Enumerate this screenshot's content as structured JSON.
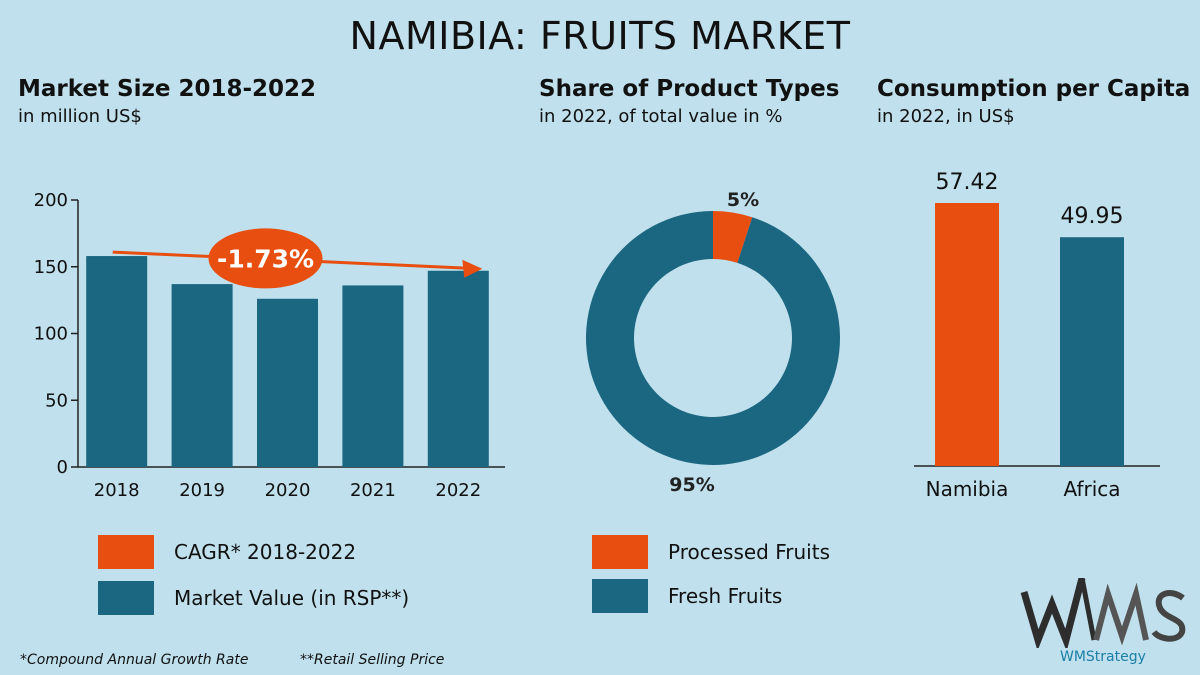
{
  "title": "NAMIBIA: FRUITS MARKET",
  "colors": {
    "accent": "#e84e0f",
    "primary": "#1b6680",
    "background": "#bfe0ec"
  },
  "sections": {
    "market_size": {
      "title": "Market Size 2018-2022",
      "subtitle": "in million US$"
    },
    "share": {
      "title": "Share of Product Types",
      "subtitle": "in 2022, of total value in %"
    },
    "consumption": {
      "title": "Consumption per Capita",
      "subtitle": "in 2022, in US$"
    }
  },
  "legends": {
    "market": [
      {
        "label": "CAGR* 2018-2022",
        "color": "#e84e0f"
      },
      {
        "label": "Market Value (in RSP**)",
        "color": "#1b6680"
      }
    ],
    "share": [
      {
        "label": "Processed Fruits",
        "color": "#e84e0f"
      },
      {
        "label": "Fresh Fruits",
        "color": "#1b6680"
      }
    ]
  },
  "footnotes": {
    "cagr": "*Compound Annual Growth Rate",
    "rsp": "**Retail Selling Price"
  },
  "logo": {
    "text": "WMAS",
    "brand": "WMStrategy"
  },
  "chart_data": [
    {
      "type": "bar",
      "categories": [
        "2018",
        "2019",
        "2020",
        "2021",
        "2022"
      ],
      "values": [
        158,
        137,
        126,
        136,
        147
      ],
      "ylim": [
        0,
        200
      ],
      "yticks": [
        0,
        50,
        100,
        150,
        200
      ],
      "annotation": "-1.73%",
      "grid": false
    },
    {
      "type": "pie",
      "labels": [
        "Processed Fruits",
        "Fresh Fruits"
      ],
      "values": [
        5,
        95
      ],
      "value_labels": [
        "5%",
        "95%"
      ]
    },
    {
      "type": "bar",
      "categories": [
        "Namibia",
        "Africa"
      ],
      "values": [
        57.42,
        49.95
      ],
      "value_labels": [
        "57.42",
        "49.95"
      ]
    }
  ]
}
